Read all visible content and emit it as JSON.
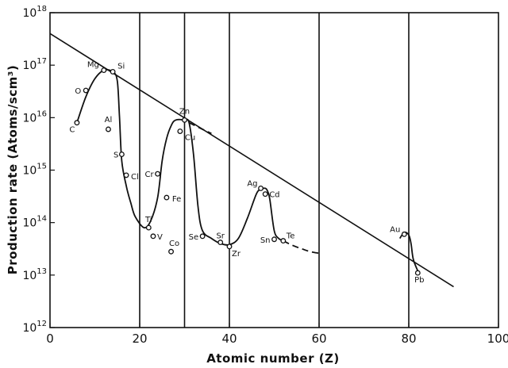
{
  "chart_data": {
    "type": "line",
    "xlabel": "Atomic number (Z)",
    "ylabel": "Production rate (Atoms/scm³)",
    "xlim": [
      0,
      100
    ],
    "ylim": [
      1000000000000.0,
      1e+18
    ],
    "yscale": "log",
    "x_ticks": [
      "0",
      "20",
      "40",
      "60",
      "80",
      "100"
    ],
    "y_ticks": [
      {
        "base": "10",
        "exp": "12"
      },
      {
        "base": "10",
        "exp": "13"
      },
      {
        "base": "10",
        "exp": "14"
      },
      {
        "base": "10",
        "exp": "15"
      },
      {
        "base": "10",
        "exp": "16"
      },
      {
        "base": "10",
        "exp": "17"
      },
      {
        "base": "10",
        "exp": "18"
      }
    ],
    "vertical_lines_x": [
      20,
      30,
      40,
      60,
      80
    ],
    "grid": false,
    "legend": "none",
    "trend_line": {
      "x": [
        0,
        90
      ],
      "y": [
        4e+17,
        6000000000000.0
      ]
    },
    "curves": [
      {
        "style": "solid",
        "x": [
          6,
          8,
          10,
          12,
          14,
          15,
          15.5,
          16,
          17,
          18,
          19,
          21,
          22.5,
          24,
          25,
          26,
          27,
          28,
          30,
          31,
          32,
          33,
          34,
          36,
          38,
          40,
          42,
          44,
          46,
          47,
          48,
          48.5,
          49,
          50,
          51,
          52
        ],
        "y": [
          8000000000000000.0,
          2.5e+16,
          5.5e+16,
          8e+16,
          7.5e+16,
          5e+16,
          1e+16,
          1500000000000000.0,
          500000000000000.0,
          240000000000000.0,
          130000000000000.0,
          80000000000000.0,
          110000000000000.0,
          300000000000000.0,
          1500000000000000.0,
          4000000000000000.0,
          7000000000000000.0,
          9000000000000000.0,
          9000000000000000.0,
          8000000000000000.0,
          2000000000000000.0,
          200000000000000.0,
          70000000000000.0,
          50000000000000.0,
          40000000000000.0,
          38000000000000.0,
          50000000000000.0,
          120000000000000.0,
          350000000000000.0,
          430000000000000.0,
          450000000000000.0,
          400000000000000.0,
          280000000000000.0,
          70000000000000.0,
          50000000000000.0,
          45000000000000.0
        ]
      },
      {
        "style": "dashed",
        "x": [
          52,
          54,
          56,
          58,
          60
        ],
        "y": [
          45000000000000.0,
          37000000000000.0,
          32000000000000.0,
          28000000000000.0,
          26000000000000.0
        ]
      },
      {
        "style": "dashed",
        "x": [
          31,
          34,
          36
        ],
        "y": [
          8000000000000000.0,
          6000000000000000.0,
          5000000000000000.0
        ]
      },
      {
        "style": "solid",
        "x": [
          78,
          79,
          80,
          80.5,
          81,
          82
        ],
        "y": [
          50000000000000.0,
          65000000000000.0,
          58000000000000.0,
          40000000000000.0,
          20000000000000.0,
          12000000000000.0
        ]
      }
    ],
    "points": [
      {
        "label": "C",
        "z": 6,
        "rate": 8000000000000000.0
      },
      {
        "label": "O",
        "z": 8,
        "rate": 3.3e+16
      },
      {
        "label": "Mg",
        "z": 12,
        "rate": 8e+16
      },
      {
        "label": "Si",
        "z": 14,
        "rate": 7.5e+16
      },
      {
        "label": "Al",
        "z": 13,
        "rate": 6000000000000000.0
      },
      {
        "label": "S",
        "z": 16,
        "rate": 2000000000000000.0
      },
      {
        "label": "Cl",
        "z": 17,
        "rate": 800000000000000.0
      },
      {
        "label": "Ti",
        "z": 22,
        "rate": 80000000000000.0
      },
      {
        "label": "V",
        "z": 23,
        "rate": 55000000000000.0
      },
      {
        "label": "Cr",
        "z": 24,
        "rate": 850000000000000.0
      },
      {
        "label": "Fe",
        "z": 26,
        "rate": 300000000000000.0
      },
      {
        "label": "Co",
        "z": 27,
        "rate": 28000000000000.0
      },
      {
        "label": "Cu",
        "z": 29,
        "rate": 5500000000000000.0
      },
      {
        "label": "Zn",
        "z": 30,
        "rate": 9000000000000000.0
      },
      {
        "label": "Se",
        "z": 34,
        "rate": 55000000000000.0
      },
      {
        "label": "Sr",
        "z": 38,
        "rate": 42000000000000.0
      },
      {
        "label": "Zr",
        "z": 40,
        "rate": 35000000000000.0
      },
      {
        "label": "Ag",
        "z": 47,
        "rate": 450000000000000.0
      },
      {
        "label": "Cd",
        "z": 48,
        "rate": 350000000000000.0
      },
      {
        "label": "Sn",
        "z": 50,
        "rate": 48000000000000.0
      },
      {
        "label": "Te",
        "z": 52,
        "rate": 45000000000000.0
      },
      {
        "label": "Au",
        "z": 79,
        "rate": 60000000000000.0
      },
      {
        "label": "Pb",
        "z": 82,
        "rate": 11000000000000.0
      }
    ]
  }
}
